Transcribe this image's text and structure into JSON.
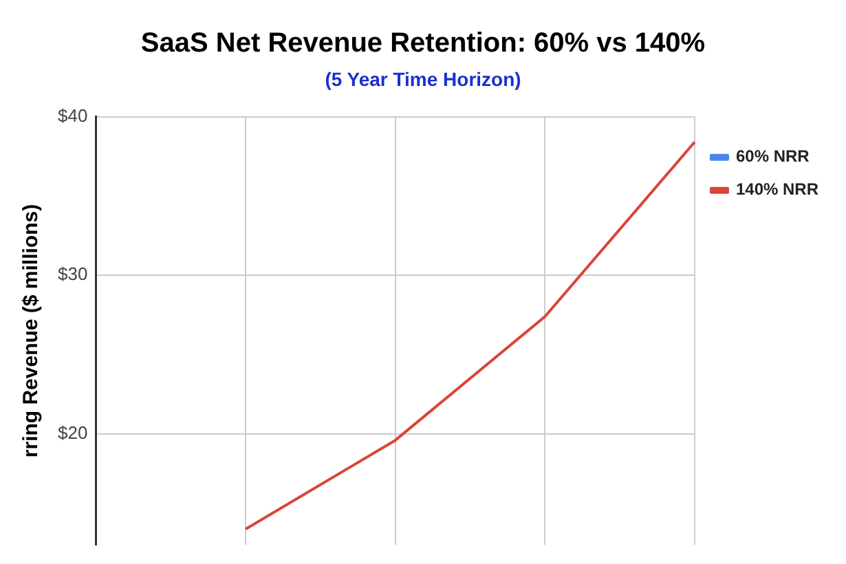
{
  "chart_data": {
    "type": "line",
    "title": "SaaS Net Revenue Retention: 60% vs 140%",
    "subtitle": "(5 Year Time Horizon)",
    "ylabel": "rring Revenue ($ millions)",
    "categories": [
      null,
      null,
      null,
      null,
      null
    ],
    "series": [
      {
        "name": "60% NRR",
        "color": "#4a86e8",
        "values": [
          null,
          null,
          null,
          null,
          null
        ]
      },
      {
        "name": "140% NRR",
        "color": "#db4437",
        "values": [
          null,
          14,
          19.6,
          27.4,
          38.4
        ]
      }
    ],
    "ylim": [
      13,
      40
    ],
    "yticks": [
      {
        "value": 20,
        "label": "$20"
      },
      {
        "value": 30,
        "label": "$30"
      },
      {
        "value": 40,
        "label": "$40"
      }
    ],
    "grid": true,
    "legend": "right",
    "tick_labels": "y",
    "marker": "none",
    "line_style": "solid"
  }
}
